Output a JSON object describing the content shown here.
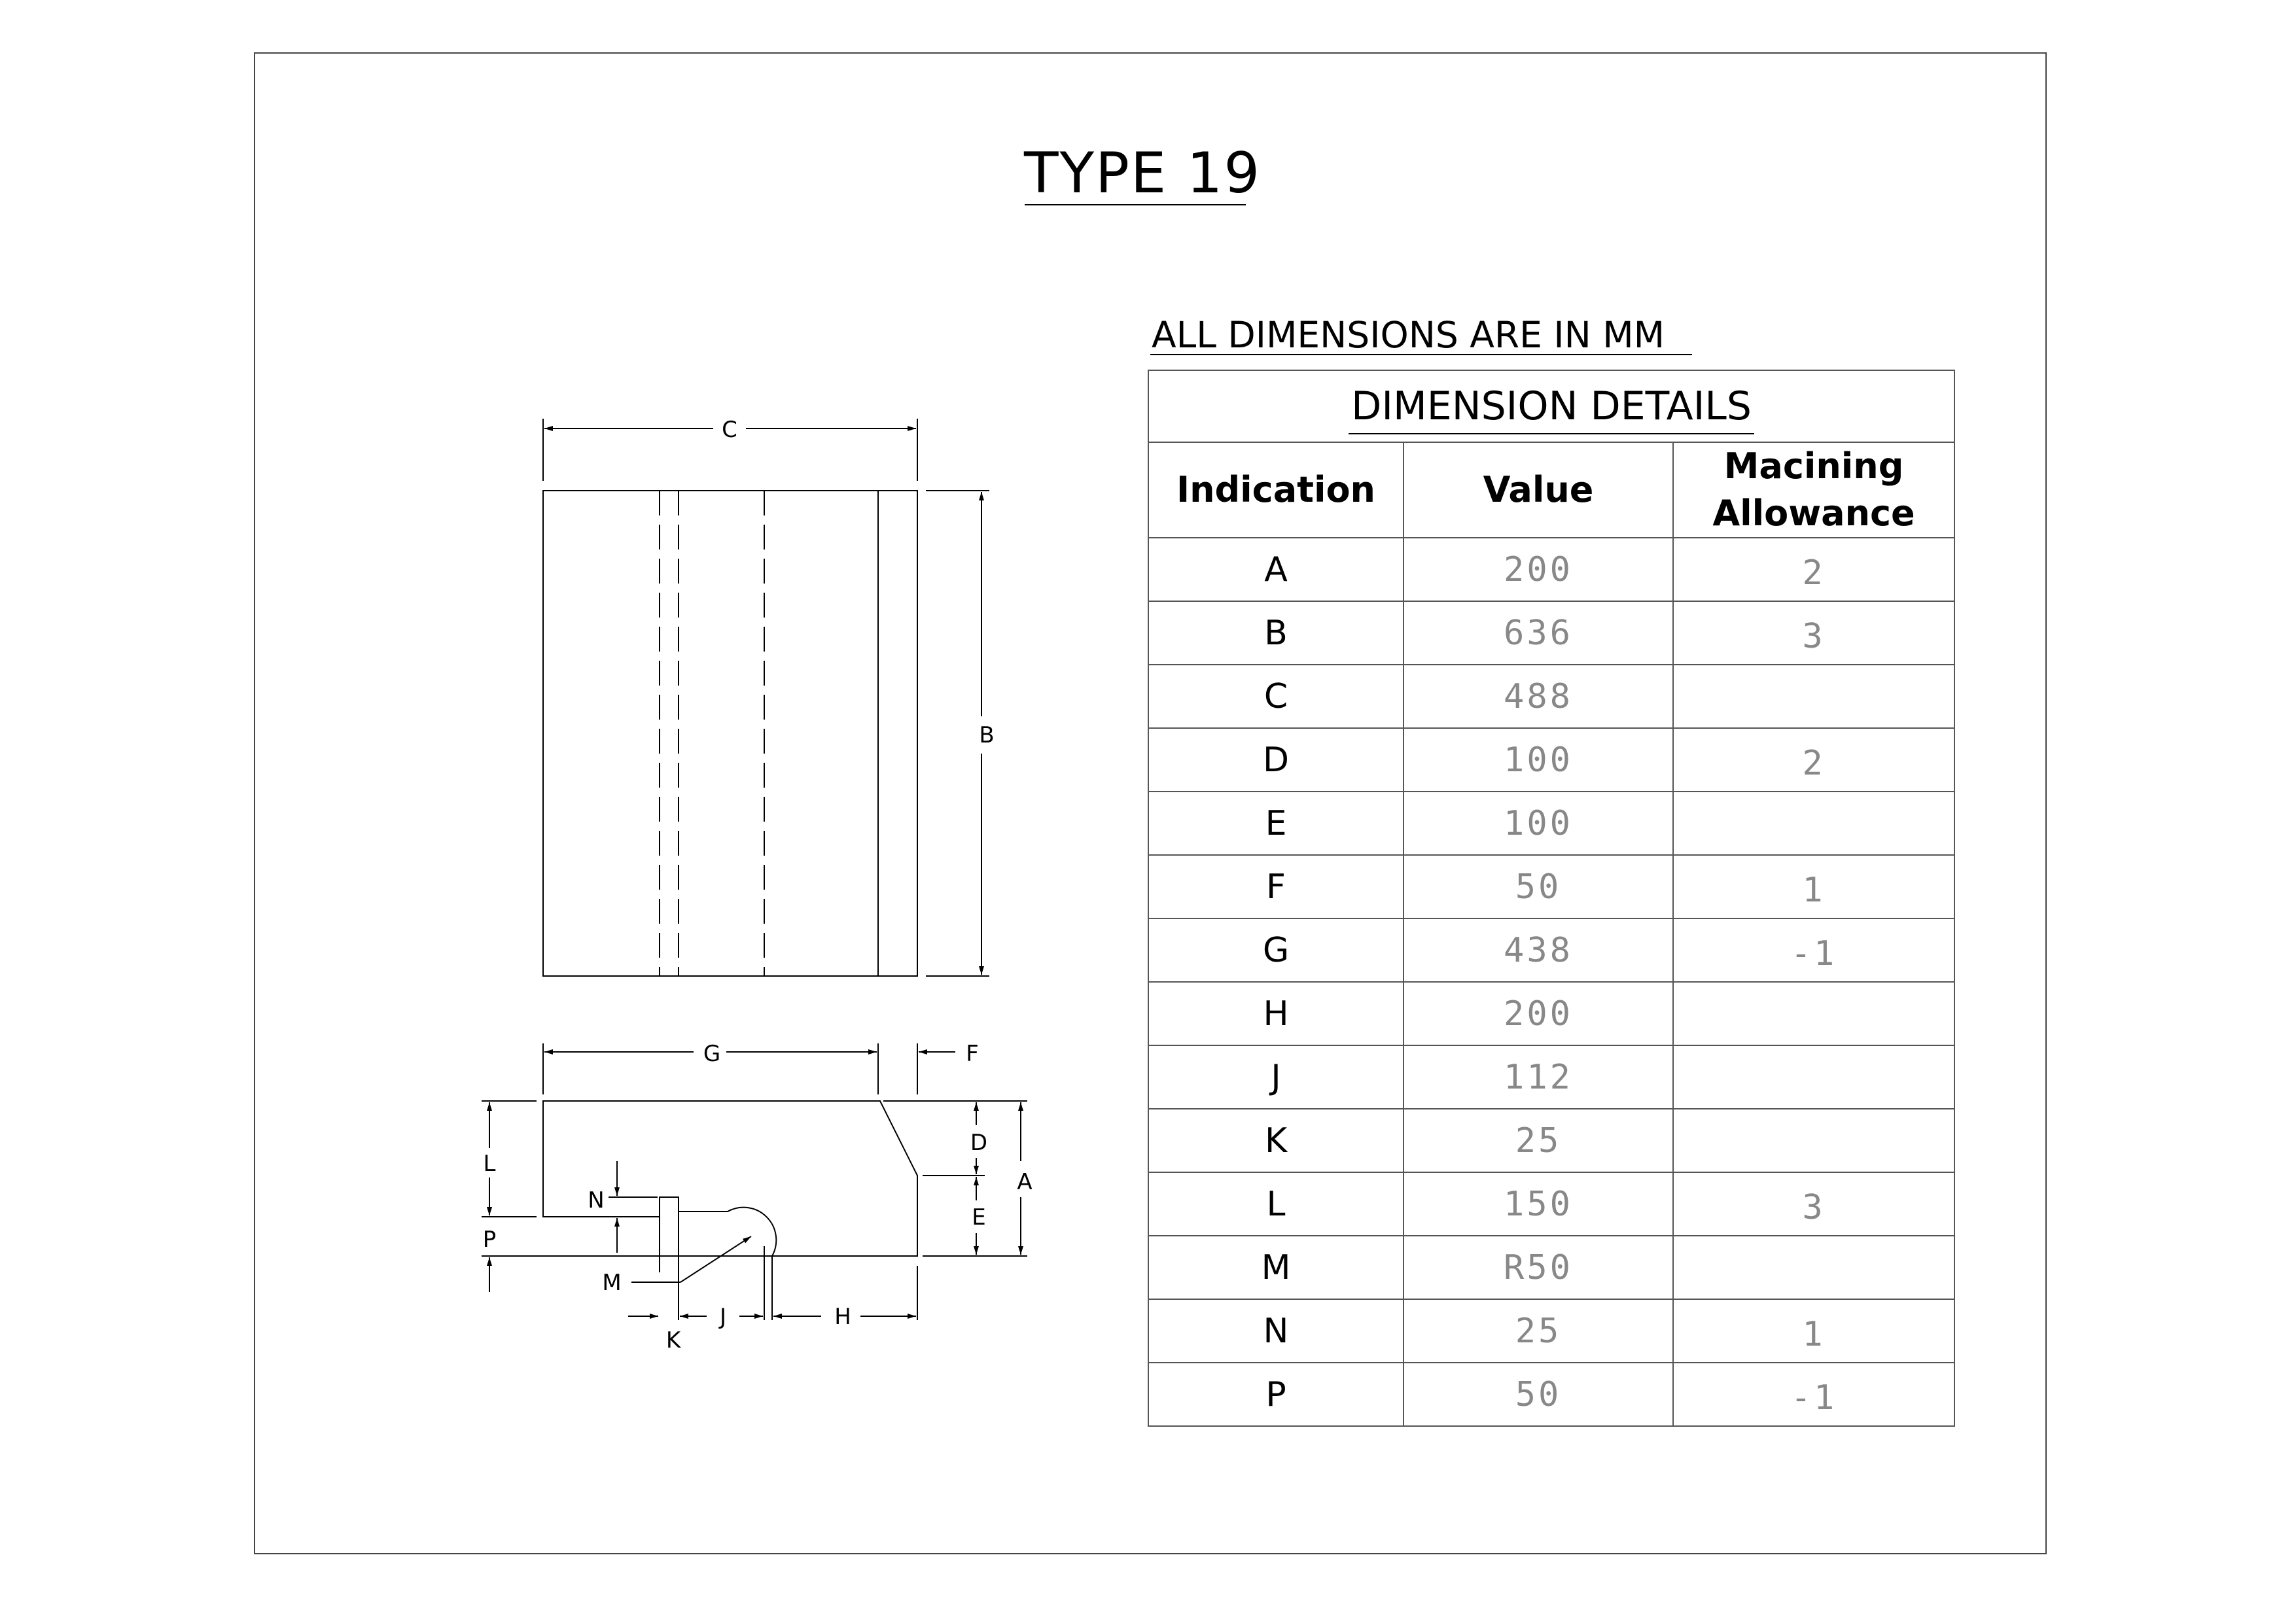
{
  "title": "TYPE 19",
  "units_note": "ALL DIMENSIONS ARE IN MM",
  "drawing_labels": {
    "A": "A",
    "B": "B",
    "C": "C",
    "D": "D",
    "E": "E",
    "F": "F",
    "G": "G",
    "H": "H",
    "J": "J",
    "K": "K",
    "L": "L",
    "M": "M",
    "N": "N",
    "P": "P"
  },
  "table": {
    "caption": "DIMENSION DETAILS",
    "columns": [
      "Indication",
      "Value",
      "Macining Allowance"
    ],
    "rows": [
      {
        "indication": "A",
        "value": "200",
        "allowance": "2"
      },
      {
        "indication": "B",
        "value": "636",
        "allowance": "3"
      },
      {
        "indication": "C",
        "value": "488",
        "allowance": ""
      },
      {
        "indication": "D",
        "value": "100",
        "allowance": "2"
      },
      {
        "indication": "E",
        "value": "100",
        "allowance": ""
      },
      {
        "indication": "F",
        "value": "50",
        "allowance": "1"
      },
      {
        "indication": "G",
        "value": "438",
        "allowance": "-1"
      },
      {
        "indication": "H",
        "value": "200",
        "allowance": ""
      },
      {
        "indication": "J",
        "value": "112",
        "allowance": ""
      },
      {
        "indication": "K",
        "value": "25",
        "allowance": ""
      },
      {
        "indication": "L",
        "value": "150",
        "allowance": "3"
      },
      {
        "indication": "M",
        "value": "R50",
        "allowance": ""
      },
      {
        "indication": "N",
        "value": "25",
        "allowance": "1"
      },
      {
        "indication": "P",
        "value": "50",
        "allowance": "-1"
      }
    ]
  }
}
